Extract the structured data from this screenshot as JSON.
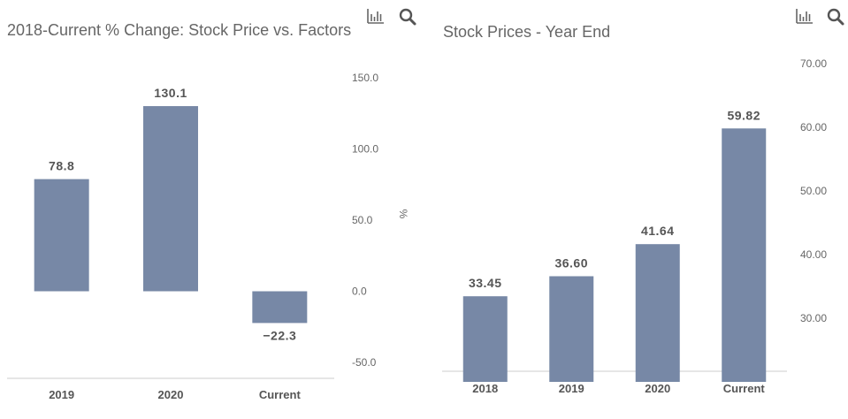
{
  "charts": [
    {
      "title": "2018-Current % Change: Stock Price vs. Factors",
      "tools": {
        "chart_icon": "bar-chart-icon",
        "zoom_icon": "search-icon"
      }
    },
    {
      "title": "Stock Prices - Year End",
      "tools": {
        "chart_icon": "bar-chart-icon",
        "zoom_icon": "search-icon"
      }
    }
  ],
  "chart_data": [
    {
      "type": "bar",
      "title": "2018-Current % Change: Stock Price vs. Factors",
      "categories": [
        "2019",
        "2020",
        "Current"
      ],
      "values": [
        78.8,
        130.1,
        -22.3
      ],
      "value_labels": [
        "78.8",
        "130.1",
        "−22.3"
      ],
      "ylabel": "%",
      "ylim": [
        -50,
        150
      ],
      "y_ticks": [
        "-50.0",
        "0.0",
        "50.0",
        "100.0",
        "150.0"
      ],
      "y_tick_values": [
        -50,
        0,
        50,
        100,
        150
      ],
      "y_axis_position": "right",
      "grid": false,
      "bar_color": "#7788a6"
    },
    {
      "type": "bar",
      "title": "Stock Prices - Year End",
      "categories": [
        "2018",
        "2019",
        "2020",
        "Current"
      ],
      "values": [
        33.45,
        36.6,
        41.64,
        59.82
      ],
      "value_labels": [
        "33.45",
        "36.60",
        "41.64",
        "59.82"
      ],
      "ylabel": "",
      "ylim": [
        20,
        70
      ],
      "y_ticks": [
        "30.00",
        "40.00",
        "50.00",
        "60.00",
        "70.00"
      ],
      "y_tick_values": [
        30,
        40,
        50,
        60,
        70
      ],
      "y_axis_position": "right",
      "grid": false,
      "bar_color": "#7788a6"
    }
  ]
}
